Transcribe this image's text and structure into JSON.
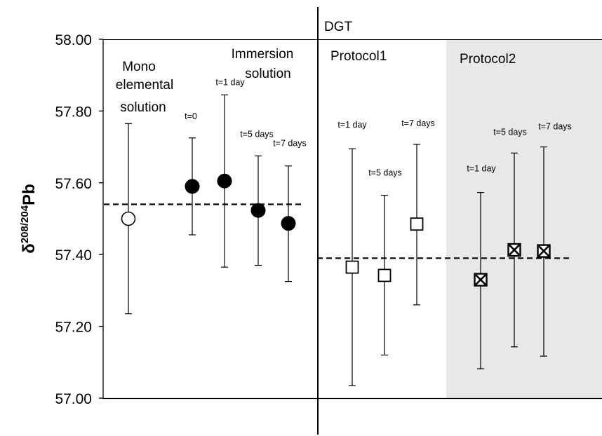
{
  "chart_data": {
    "type": "scatter",
    "title": "",
    "ylabel_prefix": "δ",
    "ylabel_sup": "208/204",
    "ylabel_main": "Pb",
    "ylim": [
      57.0,
      58.0
    ],
    "yticks": [
      "57.00",
      "57.20",
      "57.40",
      "57.60",
      "57.80",
      "58.00"
    ],
    "grid": false,
    "section_label": "DGT",
    "group_labels": {
      "mono": [
        "Mono",
        "elemental",
        "solution"
      ],
      "immersion": [
        "Immersion",
        "solution"
      ],
      "protocol1": "Protocol1",
      "protocol2": "Protocol2"
    },
    "reference_lines": [
      {
        "y": 57.54
      },
      {
        "y": 57.39
      }
    ],
    "points": [
      {
        "group": "mono",
        "label": "",
        "y": 57.5,
        "err_low": 57.235,
        "err_high": 57.765,
        "marker": "open-circle"
      },
      {
        "group": "immersion",
        "label": "t=0",
        "y": 57.59,
        "err_low": 57.455,
        "err_high": 57.725,
        "marker": "filled-circle"
      },
      {
        "group": "immersion",
        "label": "t=1 day",
        "y": 57.605,
        "err_low": 57.365,
        "err_high": 57.845,
        "marker": "filled-circle"
      },
      {
        "group": "immersion",
        "label": "t=5 days",
        "y": 57.523,
        "err_low": 57.37,
        "err_high": 57.675,
        "marker": "filled-circle"
      },
      {
        "group": "immersion",
        "label": "t=7 days",
        "y": 57.487,
        "err_low": 57.325,
        "err_high": 57.647,
        "marker": "filled-circle"
      },
      {
        "group": "protocol1",
        "label": "t=1 day",
        "y": 57.365,
        "err_low": 57.035,
        "err_high": 57.695,
        "marker": "open-square"
      },
      {
        "group": "protocol1",
        "label": "t=5 days",
        "y": 57.342,
        "err_low": 57.12,
        "err_high": 57.565,
        "marker": "open-square"
      },
      {
        "group": "protocol1",
        "label": "t=7 days",
        "y": 57.485,
        "err_low": 57.26,
        "err_high": 57.707,
        "marker": "open-square"
      },
      {
        "group": "protocol2",
        "label": "t=1 day",
        "y": 57.33,
        "err_low": 57.082,
        "err_high": 57.573,
        "marker": "x-square"
      },
      {
        "group": "protocol2",
        "label": "t=5 days",
        "y": 57.413,
        "err_low": 57.143,
        "err_high": 57.683,
        "marker": "x-square"
      },
      {
        "group": "protocol2",
        "label": "t=7 days",
        "y": 57.41,
        "err_low": 57.117,
        "err_high": 57.7,
        "marker": "x-square"
      }
    ],
    "colors": {
      "axis": "#000000",
      "protocol2_background": "#e8e8e8",
      "filled_marker": "#000000",
      "open_marker_fill": "#ffffff"
    }
  }
}
